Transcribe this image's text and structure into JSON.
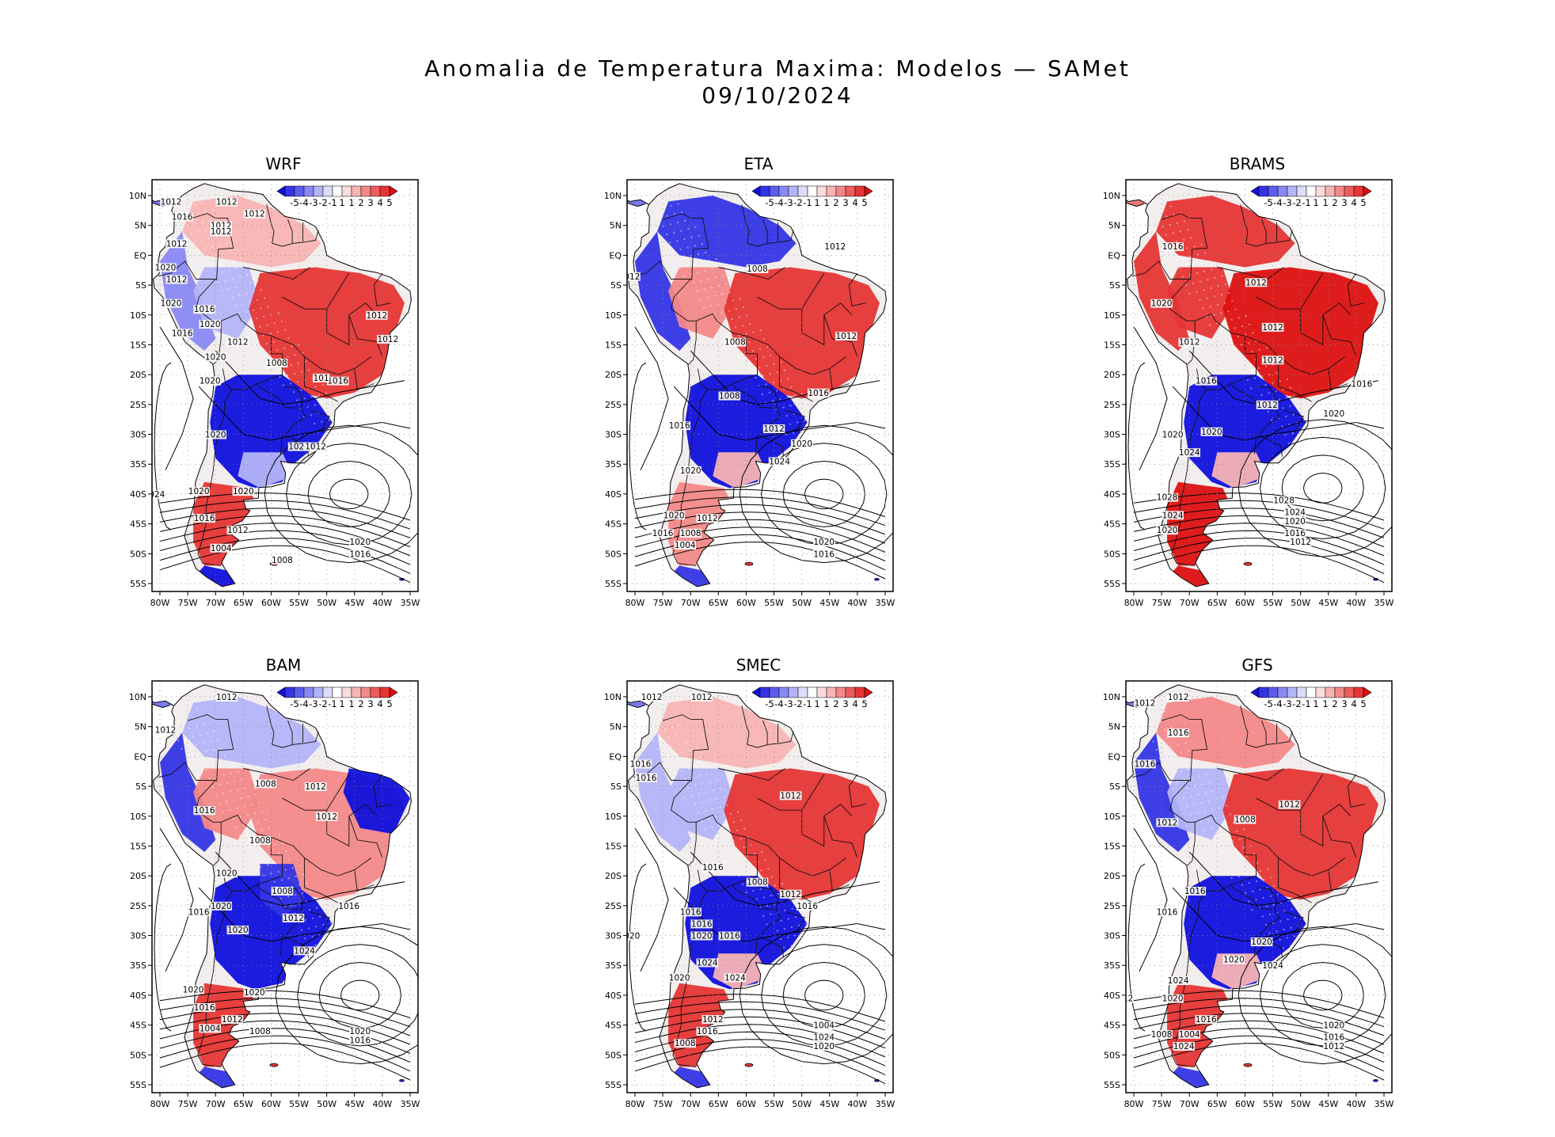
{
  "title": {
    "line1": "Anomalia de Temperatura Maxima: Modelos — SAMet",
    "line2": "09/10/2024"
  },
  "colorbar": {
    "labels": [
      "-5",
      "-4",
      "-3",
      "-2",
      "-1",
      "1",
      "1",
      "2",
      "3",
      "4",
      "5"
    ],
    "colors": [
      "#1010dd",
      "#3434e6",
      "#5c5cee",
      "#8888f4",
      "#b4b4f8",
      "#dcdcfb",
      "#ffffff",
      "#fbdcdc",
      "#f8b4b4",
      "#f48888",
      "#ee5c5c",
      "#e63434",
      "#dd1010"
    ]
  },
  "axes": {
    "lat_labels": [
      "10N",
      "5N",
      "EQ",
      "5S",
      "10S",
      "15S",
      "20S",
      "25S",
      "30S",
      "35S",
      "40S",
      "45S",
      "50S",
      "55S"
    ],
    "lon_labels": [
      "80W",
      "75W",
      "70W",
      "65W",
      "60W",
      "55W",
      "50W",
      "45W",
      "40W",
      "35W"
    ]
  },
  "panels": [
    {
      "name": "WRF",
      "labels": [
        "1012",
        "1012",
        "1016",
        "1012",
        "1012",
        "1012",
        "1012",
        "1020",
        "1012",
        "1020",
        "1016",
        "1020",
        "1016",
        "1012",
        "1020",
        "1008",
        "1016",
        "1012",
        "1012",
        "1020",
        "1020",
        "1024",
        "1024",
        "1020",
        "1020",
        "1016",
        "1012",
        "1004",
        "1008",
        "1020",
        "1016",
        "1012",
        "101"
      ]
    },
    {
      "name": "ETA",
      "labels": [
        "1012",
        "1008",
        "1012",
        "1008",
        "1012",
        "1008",
        "1016",
        "1016",
        "1012",
        "1020",
        "1020",
        "1024",
        "1020",
        "1012",
        "1016",
        "1008",
        "1004",
        "1020",
        "1016"
      ]
    },
    {
      "name": "BRAMS",
      "labels": [
        "1016",
        "1012",
        "1020",
        "1012",
        "1012",
        "1012",
        "1016",
        "1016",
        "1012",
        "1020",
        "1020",
        "1020",
        "1024",
        "1028",
        "1028",
        "1024",
        "1024",
        "1020",
        "1020",
        "1016",
        "1012"
      ]
    },
    {
      "name": "BAM",
      "labels": [
        "1012",
        "1012",
        "1012",
        "1008",
        "1016",
        "1012",
        "1008",
        "1020",
        "1008",
        "1016",
        "1020",
        "1016",
        "1012",
        "1020",
        "1024",
        "1020",
        "1020",
        "1016",
        "1012",
        "1004",
        "1008",
        "1020",
        "1016"
      ]
    },
    {
      "name": "SMEC",
      "labels": [
        "1012",
        "1012",
        "1016",
        "1016",
        "1012",
        "1016",
        "1008",
        "1012",
        "1016",
        "1016",
        "1016",
        "1020",
        "1020",
        "1024",
        "1020",
        "1024",
        "1012",
        "1016",
        "1008",
        "1004",
        "1024",
        "1020",
        "1016"
      ]
    },
    {
      "name": "GFS",
      "labels": [
        "1012",
        "1012",
        "1016",
        "1016",
        "1008",
        "1012",
        "1012",
        "1016",
        "1016",
        "1020",
        "1024",
        "1020",
        "1024",
        "1020",
        "1012",
        "1016",
        "1008",
        "1004",
        "1024",
        "1020",
        "1016",
        "1012"
      ]
    }
  ]
}
